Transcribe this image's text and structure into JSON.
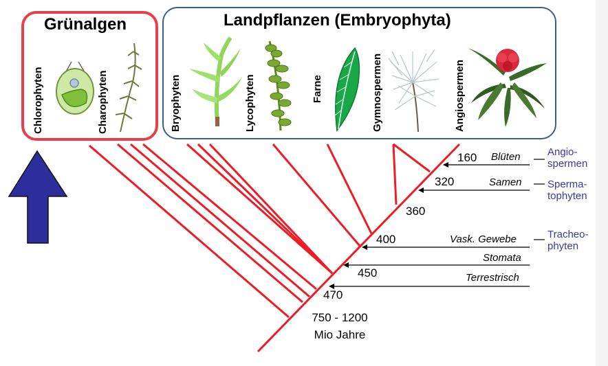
{
  "titles": {
    "gruenalgen": "Grünalgen",
    "landpflanzen": "Landpflanzen (Embryophyta)"
  },
  "taxa": [
    "Chlorophyten",
    "Charophyten",
    "Bryophyten",
    "Lycophyten",
    "Farne",
    "Gymnospermen",
    "Angiospermen"
  ],
  "milestones": [
    {
      "age": "160",
      "trait": "Blüten"
    },
    {
      "age": "320",
      "trait": "Samen"
    },
    {
      "age": "360",
      "trait": ""
    },
    {
      "age": "400",
      "trait": "Vask. Gewebe"
    },
    {
      "age": "",
      "trait": "Stomata"
    },
    {
      "age": "450",
      "trait": "Terrestrisch"
    },
    {
      "age": "470",
      "trait": ""
    }
  ],
  "groups": {
    "angiospermen": [
      "Angio-",
      "spermen"
    ],
    "spermatophyten": [
      "Sperma-",
      "tophyten"
    ],
    "tracheophyten": [
      "Tracheo-",
      "phyten"
    ]
  },
  "root_age": [
    "750 - 1200",
    "Mio Jahre"
  ],
  "colors": {
    "tree": "#ee1c24",
    "highlight_border": "#e8404a",
    "land_border": "#3c5f86",
    "arrow": "#2d2d9c",
    "group_text": "#3a3aa0"
  }
}
